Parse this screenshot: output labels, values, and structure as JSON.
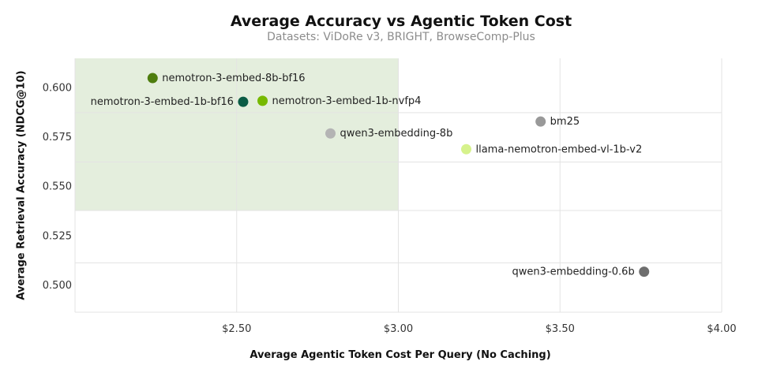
{
  "chart_data": {
    "type": "scatter",
    "title": "Average Accuracy vs Agentic Token Cost",
    "subtitle": "Datasets: ViDoRe v3, BRIGHT, BrowseComp-Plus",
    "xlabel": "Average Agentic Token Cost Per Query (No Caching)",
    "ylabel": "Average Retrieval Accuracy (NDCG@10)",
    "xlim": [
      2.0,
      4.0
    ],
    "ylim": [
      0.486,
      0.6145
    ],
    "x_ticks": [
      2.5,
      3.0,
      3.5,
      4.0
    ],
    "x_tick_labels": [
      "$2.50",
      "$3.00",
      "$3.50",
      "$4.00"
    ],
    "y_ticks": [
      0.5,
      0.525,
      0.55,
      0.575,
      0.6
    ],
    "y_tick_labels": [
      "0.500",
      "0.525",
      "0.550",
      "0.575",
      "0.600"
    ],
    "grid": true,
    "highlight_region": {
      "x": [
        2.0,
        3.0
      ],
      "y": [
        0.5375,
        0.6145
      ],
      "color": "#e4eedd"
    },
    "points": [
      {
        "name": "nemotron-3-embed-8b-bf16",
        "x": 2.24,
        "y": 0.6045,
        "color": "#4e7d0e",
        "label_side": "right"
      },
      {
        "name": "nemotron-3-embed-1b-bf16",
        "x": 2.52,
        "y": 0.5925,
        "color": "#0b5c45",
        "label_side": "left"
      },
      {
        "name": "nemotron-3-embed-1b-nvfp4",
        "x": 2.58,
        "y": 0.593,
        "color": "#76b900",
        "label_side": "right"
      },
      {
        "name": "qwen3-embedding-8b",
        "x": 2.79,
        "y": 0.5765,
        "color": "#b4b4b4",
        "label_side": "right"
      },
      {
        "name": "bm25",
        "x": 3.44,
        "y": 0.5825,
        "color": "#999999",
        "label_side": "right"
      },
      {
        "name": "llama-nemotron-embed-vl-1b-v2",
        "x": 3.21,
        "y": 0.5685,
        "color": "#d6f28c",
        "label_side": "right"
      },
      {
        "name": "qwen3-embedding-0.6b",
        "x": 3.76,
        "y": 0.5065,
        "color": "#6e6e6e",
        "label_side": "left"
      }
    ]
  }
}
